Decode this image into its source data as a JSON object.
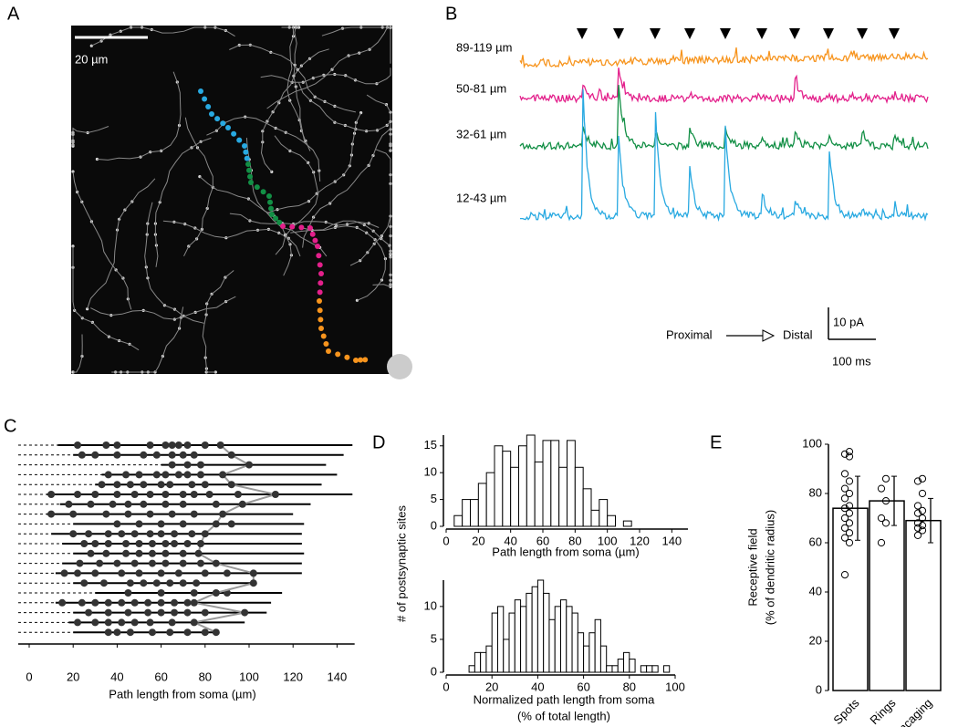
{
  "panels": {
    "a": {
      "label": "A",
      "scale_bar": "20 µm"
    },
    "b": {
      "label": "B",
      "traces": [
        {
          "name": "89-119 µm",
          "color": "#f7941d"
        },
        {
          "name": "50-81 µm",
          "color": "#e3208b"
        },
        {
          "name": "32-61 µm",
          "color": "#128f45"
        },
        {
          "name": "12-43 µm",
          "color": "#28a9e1"
        }
      ],
      "proximal": "Proximal",
      "distal": "Distal",
      "scale_y": "10 pA",
      "scale_x": "100 ms"
    }
  },
  "chart_data": [
    {
      "type": "sites",
      "panel": "C",
      "xlabel": "Path length from soma (µm)",
      "xlim": [
        -5,
        148
      ],
      "xticks": [
        0,
        20,
        40,
        60,
        80,
        100,
        120,
        140
      ],
      "rows": [
        {
          "start": 13,
          "end": 147,
          "sites": [
            22,
            35,
            40,
            55,
            62,
            65,
            68,
            72,
            80
          ],
          "boundary": 87
        },
        {
          "start": 20,
          "end": 143,
          "sites": [
            24,
            30,
            40,
            52,
            58,
            65,
            70,
            75
          ],
          "boundary": 92
        },
        {
          "start": 60,
          "end": 135,
          "sites": [
            65,
            72,
            78
          ],
          "boundary": 100
        },
        {
          "start": 33,
          "end": 140,
          "sites": [
            36,
            44,
            50,
            58,
            62,
            68,
            72,
            78
          ],
          "boundary": 88
        },
        {
          "start": 30,
          "end": 133,
          "sites": [
            33,
            40,
            46,
            52,
            60,
            64,
            74,
            80
          ],
          "boundary": 92
        },
        {
          "start": 8,
          "end": 147,
          "sites": [
            10,
            22,
            30,
            40,
            48,
            55,
            62,
            70,
            75,
            82,
            95
          ],
          "boundary": 112
        },
        {
          "start": 14,
          "end": 128,
          "sites": [
            18,
            28,
            38,
            45,
            52,
            62,
            70,
            85
          ],
          "boundary": 97
        },
        {
          "start": 8,
          "end": 120,
          "sites": [
            10,
            20,
            35,
            45,
            55,
            65,
            75
          ],
          "boundary": 88
        },
        {
          "start": 20,
          "end": 125,
          "sites": [
            40,
            50,
            60,
            70,
            92
          ],
          "boundary": 85
        },
        {
          "start": 10,
          "end": 124,
          "sites": [
            20,
            27,
            36,
            42,
            48,
            55,
            60,
            66,
            74
          ],
          "boundary": 80
        },
        {
          "start": 15,
          "end": 124,
          "sites": [
            25,
            30,
            36,
            44,
            50,
            56,
            62,
            66,
            72
          ],
          "boundary": 78
        },
        {
          "start": 20,
          "end": 125,
          "sites": [
            28,
            35,
            44,
            50,
            56,
            62,
            70
          ],
          "boundary": 77
        },
        {
          "start": 15,
          "end": 124,
          "sites": [
            23,
            32,
            40,
            48,
            56,
            62,
            70,
            78
          ],
          "boundary": 85
        },
        {
          "start": 12,
          "end": 124,
          "sites": [
            16,
            22,
            30,
            42,
            50,
            60,
            68,
            80,
            90
          ],
          "boundary": 102
        },
        {
          "start": 20,
          "end": 103,
          "sites": [
            25,
            34,
            46,
            52,
            58,
            64,
            70,
            76
          ],
          "boundary": 102
        },
        {
          "start": 30,
          "end": 115,
          "sites": [
            45,
            60,
            75,
            90
          ],
          "boundary": 85
        },
        {
          "start": 12,
          "end": 110,
          "sites": [
            15,
            24,
            30,
            36,
            42,
            48,
            54,
            60,
            66,
            72
          ],
          "boundary": 75
        },
        {
          "start": 20,
          "end": 108,
          "sites": [
            27,
            36,
            45,
            54,
            60,
            66,
            72,
            80
          ],
          "boundary": 98
        },
        {
          "start": 18,
          "end": 98,
          "sites": [
            22,
            30,
            36,
            42,
            48,
            55,
            65
          ],
          "boundary": 75
        },
        {
          "start": 20,
          "end": 85,
          "sites": [
            36,
            40,
            46,
            56,
            64,
            72,
            80
          ],
          "boundary": 85
        }
      ]
    },
    {
      "type": "histogram",
      "panel": "D",
      "ylabel": "# of postsynaptic sites",
      "xlabel": "Path length from soma (µm)",
      "bins": [
        5,
        10,
        15,
        20,
        25,
        30,
        35,
        40,
        45,
        50,
        55,
        60,
        65,
        70,
        75,
        80,
        85,
        90,
        95,
        100,
        105,
        110,
        115
      ],
      "counts": [
        2,
        5,
        5,
        8,
        10,
        15,
        14,
        11,
        15,
        17,
        12,
        16,
        16,
        11,
        16,
        11,
        7,
        3,
        5,
        2,
        0,
        1
      ],
      "xlim": [
        0,
        150
      ],
      "xticks": [
        0,
        20,
        40,
        60,
        80,
        100,
        120,
        140
      ],
      "ylim": [
        0,
        17
      ],
      "yticks": [
        0,
        5,
        10,
        15
      ]
    },
    {
      "type": "histogram",
      "xlabel": [
        "Normalized path length from soma",
        "(% of total length)"
      ],
      "bins": [
        10,
        12.5,
        15,
        17.5,
        20,
        22.5,
        25,
        27.5,
        30,
        32.5,
        35,
        37.5,
        40,
        42.5,
        45,
        47.5,
        50,
        52.5,
        55,
        57.5,
        60,
        62.5,
        65,
        67.5,
        70,
        72.5,
        75,
        77.5,
        80,
        82.5,
        85,
        87.5,
        90,
        92.5,
        95,
        97.5,
        100
      ],
      "counts": [
        1,
        3,
        3,
        4,
        9,
        10,
        5,
        9,
        11,
        10,
        12,
        13,
        14,
        12,
        8,
        10,
        11,
        10,
        9,
        6,
        4,
        6,
        8,
        4,
        1,
        1,
        2,
        3,
        2,
        0,
        1,
        1,
        1,
        0,
        1,
        0
      ],
      "xlim": [
        0,
        100
      ],
      "xticks": [
        0,
        20,
        40,
        60,
        80,
        100
      ],
      "ylim": [
        0,
        14
      ],
      "yticks": [
        0,
        5,
        10
      ]
    },
    {
      "type": "bar",
      "panel": "E",
      "ylabel": [
        "Receptive field",
        "(% of dendritic radius)"
      ],
      "categories": [
        "Spots",
        "Rings",
        "Uncaging"
      ],
      "values": [
        74,
        77,
        69
      ],
      "errors": [
        13,
        10,
        9
      ],
      "points": [
        [
          47,
          60,
          62,
          64,
          66,
          68,
          70,
          72,
          74,
          75,
          78,
          80,
          82,
          85,
          88,
          95,
          96,
          97
        ],
        [
          60,
          68,
          70,
          77,
          82,
          86
        ],
        [
          63,
          65,
          66,
          67,
          68,
          70,
          72,
          73,
          75,
          80,
          85,
          86
        ]
      ],
      "ylim": [
        0,
        100
      ],
      "yticks": [
        0,
        20,
        40,
        60,
        80,
        100
      ]
    }
  ]
}
